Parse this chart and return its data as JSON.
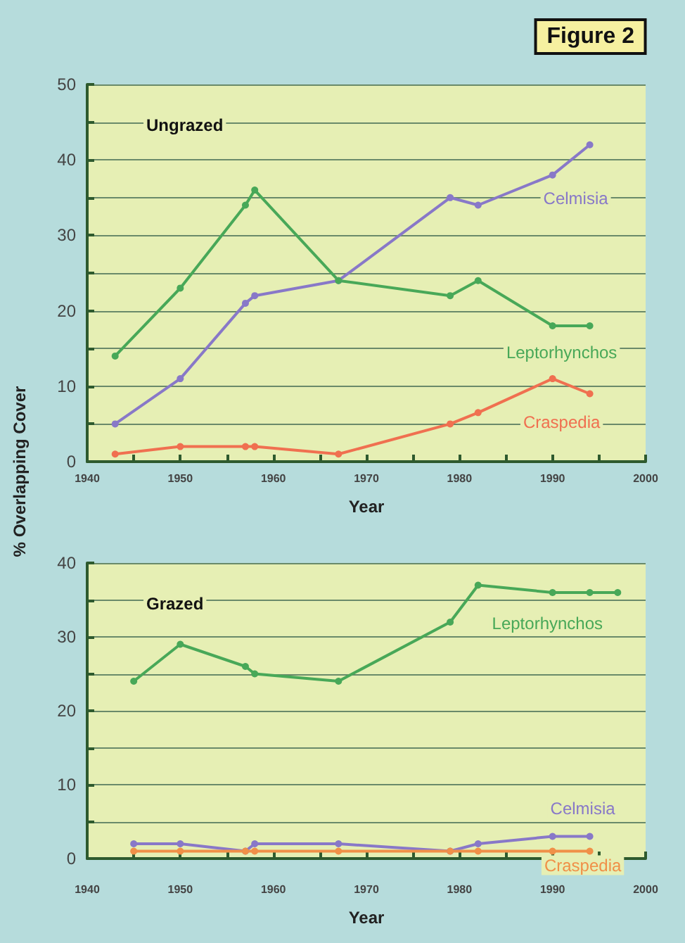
{
  "chart_data": [
    {
      "type": "line",
      "title": "Figure 2",
      "xlabel": "Year",
      "ylabel": "% Overlapping Cover",
      "annotations": [
        "Ungrazed"
      ],
      "series": [
        {
          "name": "Celmisia",
          "color": "#8878c8",
          "x": [
            1943,
            1950,
            1957,
            1958,
            1967,
            1979,
            1982,
            1990,
            1994
          ],
          "values": [
            5,
            11,
            21,
            22,
            24,
            35,
            34,
            38,
            42
          ]
        },
        {
          "name": "Leptorhynchos",
          "color": "#48a858",
          "x": [
            1943,
            1950,
            1957,
            1958,
            1967,
            1979,
            1982,
            1990,
            1994
          ],
          "values": [
            14,
            23,
            34,
            36,
            24,
            22,
            24,
            18,
            18
          ]
        },
        {
          "name": "Craspedia",
          "color": "#f07050",
          "x": [
            1943,
            1950,
            1957,
            1958,
            1967,
            1979,
            1982,
            1990,
            1994
          ],
          "values": [
            1,
            2,
            2,
            2,
            1,
            5,
            6.5,
            11,
            9
          ]
        }
      ],
      "xlim": [
        1940,
        2000
      ],
      "xticks": [
        1940,
        {
          "value": 1945,
          "label": null
        },
        1950,
        {
          "value": 1955,
          "label": null
        },
        1960,
        {
          "value": 1965,
          "label": null
        },
        1970,
        {
          "value": 1975,
          "label": null
        },
        1980,
        {
          "value": 1985,
          "label": null
        },
        1990,
        {
          "value": 1995,
          "label": null
        },
        2000
      ],
      "ylim": [
        0,
        50
      ],
      "yticks": [
        0,
        {
          "value": 5,
          "label": null
        },
        10,
        {
          "value": 15,
          "label": null
        },
        20,
        {
          "value": 25,
          "label": null
        },
        30,
        {
          "value": 35,
          "label": null
        },
        40,
        {
          "value": 45,
          "label": null
        },
        50
      ],
      "grid": "y",
      "marker": "circle",
      "line_style": "solid",
      "legend": false
    },
    {
      "type": "line",
      "xlabel": "Year",
      "annotations": [
        "Grazed"
      ],
      "series": [
        {
          "name": "Leptorhynchos",
          "color": "#48a858",
          "x": [
            1945,
            1950,
            1957,
            1958,
            1967,
            1979,
            1982,
            1990,
            1994,
            1997
          ],
          "values": [
            24,
            29,
            26,
            25,
            24,
            32,
            37,
            36,
            36,
            36
          ]
        },
        {
          "name": "Celmisia",
          "color": "#8878c8",
          "x": [
            1945,
            1950,
            1957,
            1958,
            1967,
            1979,
            1982,
            1990,
            1994
          ],
          "values": [
            2,
            2,
            1,
            2,
            2,
            1,
            2,
            3,
            3
          ]
        },
        {
          "name": "Craspedia",
          "color": "#f09048",
          "x": [
            1945,
            1950,
            1957,
            1958,
            1967,
            1979,
            1982,
            1990,
            1994
          ],
          "values": [
            1,
            1,
            1,
            1,
            1,
            1,
            1,
            1,
            1
          ]
        }
      ],
      "xlim": [
        1940,
        2000
      ],
      "xticks": [
        1940,
        {
          "value": 1945,
          "label": null
        },
        1950,
        {
          "value": 1955,
          "label": null
        },
        1960,
        {
          "value": 1965,
          "label": null
        },
        1970,
        {
          "value": 1975,
          "label": null
        },
        1980,
        {
          "value": 1985,
          "label": null
        },
        1990,
        {
          "value": 1995,
          "label": null
        },
        2000
      ],
      "ylim": [
        0,
        40
      ],
      "yticks": [
        0,
        {
          "value": 5,
          "label": null
        },
        10,
        {
          "value": 15,
          "label": null
        },
        20,
        {
          "value": 25,
          "label": null
        },
        30,
        {
          "value": 35,
          "label": null
        },
        40
      ],
      "grid": "y",
      "marker": "circle",
      "line_style": "solid",
      "legend": false
    }
  ]
}
